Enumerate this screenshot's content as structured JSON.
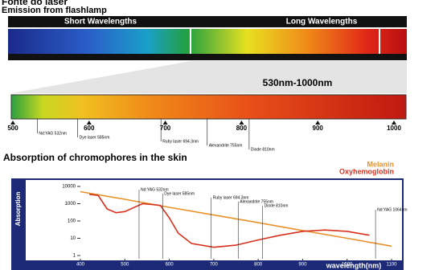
{
  "header": {
    "title": "Fonte do laser",
    "subtitle": "Emission from flashlamp",
    "short": "Short Wavelengths",
    "long": "Long Wavelengths"
  },
  "spectrum": {
    "range_label": "530nm-1000nm",
    "xlim": [
      500,
      1000
    ],
    "ticks": [
      500,
      600,
      700,
      800,
      900,
      1000
    ]
  },
  "chart_data": {
    "type": "line",
    "title": "Absorption of chromophores in the skin",
    "y_label": "Absorption",
    "x_label": "wavelength(nm)",
    "log_y": true,
    "xlim": [
      400,
      1100
    ],
    "xticks": [
      400,
      500,
      600,
      700,
      800,
      900,
      1000,
      1100
    ],
    "ylim": [
      1,
      10000
    ],
    "yticks": [
      1,
      10,
      100,
      1000,
      10000
    ],
    "series": [
      {
        "name": "Melanin",
        "color": "#e8912a",
        "x": [
          400,
          500,
          600,
          700,
          800,
          900,
          1000,
          1100
        ],
        "values": [
          5000,
          1800,
          620,
          220,
          80,
          28,
          10,
          3.5
        ]
      },
      {
        "name": "Oxyhemoglobin",
        "color": "#d8301c",
        "x": [
          420,
          440,
          460,
          480,
          500,
          520,
          540,
          560,
          580,
          600,
          620,
          650,
          700,
          750,
          800,
          850,
          900,
          950,
          1000,
          1050
        ],
        "values": [
          3500,
          3000,
          500,
          300,
          350,
          600,
          1000,
          900,
          800,
          150,
          20,
          5,
          3,
          4,
          8,
          15,
          25,
          30,
          25,
          15
        ]
      }
    ],
    "lasers": [
      {
        "label": "Nd:YAG 532nm",
        "value": 532
      },
      {
        "label": "Dye laser 585nm",
        "value": 585
      },
      {
        "label": "Ruby laser 694.3nm",
        "value": 694.3
      },
      {
        "label": "Alexandrite 755nm",
        "value": 755
      },
      {
        "label": "Diode 810nm",
        "value": 810
      },
      {
        "label": "Nd:YAG 1064nm",
        "value": 1064
      }
    ]
  }
}
